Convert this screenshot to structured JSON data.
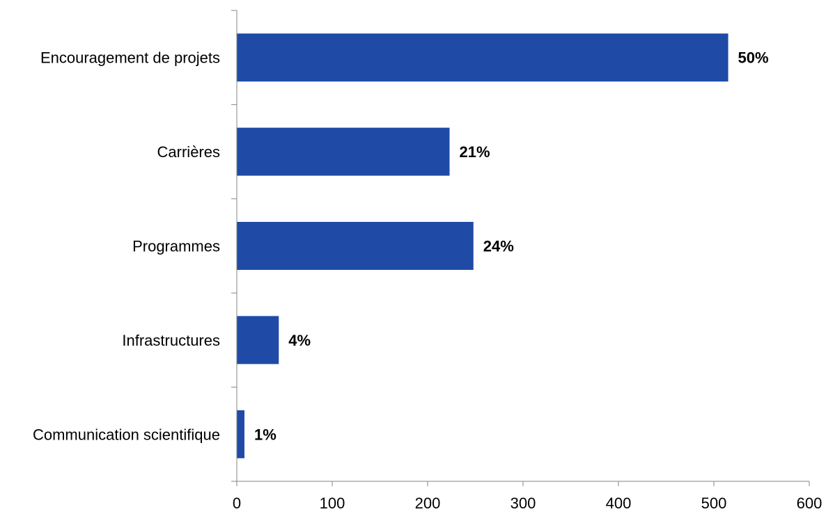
{
  "chart_data": {
    "type": "bar",
    "orientation": "horizontal",
    "categories": [
      "Encouragement de projets",
      "Carrières",
      "Programmes",
      "Infrastructures",
      "Communication scientifique"
    ],
    "values": [
      515,
      223,
      248,
      44,
      8
    ],
    "data_labels": [
      "50%",
      "21%",
      "24%",
      "4%",
      "1%"
    ],
    "xlim": [
      0,
      600
    ],
    "x_ticks": [
      0,
      100,
      200,
      300,
      400,
      500,
      600
    ],
    "title": "",
    "xlabel": "",
    "ylabel": "",
    "grid": false,
    "legend": "none",
    "bar_color": "#1F4AA6"
  }
}
